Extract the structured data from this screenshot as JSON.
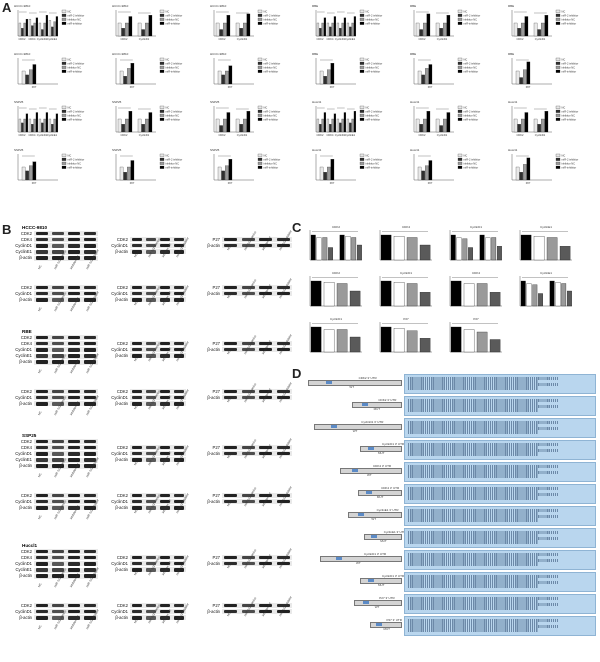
{
  "panel_letters": [
    "A",
    "B",
    "C",
    "D"
  ],
  "panel_a": {
    "legend_series": [
      "NC",
      "miR-2 inhibitor",
      "inhibitor NC",
      "miR-inhibitor"
    ],
    "series_colors": [
      "#e8e8e8",
      "#2f2f2f",
      "#9a9a9a",
      "#000000"
    ],
    "plots": [
      {
        "title": "HCCC-9810",
        "categories": [
          "CDK2",
          "CDK4",
          "CyclinD1",
          "CyclinE1"
        ],
        "values": [
          [
            1.0,
            1.3,
            1.0,
            1.2
          ],
          [
            0.6,
            0.8,
            0.5,
            0.7
          ],
          [
            1.0,
            1.0,
            1.0,
            1.1
          ],
          [
            1.3,
            1.4,
            1.6,
            1.5
          ]
        ]
      },
      {
        "title": "HCCC-9810",
        "categories": [
          "CDK2",
          "CyclinD1"
        ],
        "values": [
          [
            1.0,
            1.0
          ],
          [
            0.6,
            0.5
          ],
          [
            1.0,
            1.0
          ],
          [
            1.5,
            1.6
          ]
        ]
      },
      {
        "title": "HCCC-9810",
        "categories": [
          "CDK2",
          "CyclinD1"
        ],
        "values": [
          [
            1.0,
            1.0
          ],
          [
            0.5,
            0.6
          ],
          [
            1.0,
            1.0
          ],
          [
            1.6,
            1.7
          ]
        ]
      },
      {
        "title": "RBE",
        "categories": [
          "CDK2",
          "CDK4",
          "CyclinD1",
          "CyclinE1"
        ],
        "values": [
          [
            1.0,
            1.0,
            1.0,
            1.0
          ],
          [
            0.6,
            0.7,
            0.6,
            0.7
          ],
          [
            1.0,
            1.0,
            1.0,
            1.0
          ],
          [
            1.4,
            1.5,
            1.4,
            1.5
          ]
        ]
      },
      {
        "title": "RBE",
        "categories": [
          "CDK2",
          "CyclinD1"
        ],
        "values": [
          [
            1.0,
            1.0
          ],
          [
            0.5,
            0.6
          ],
          [
            1.0,
            1.0
          ],
          [
            1.7,
            1.6
          ]
        ]
      },
      {
        "title": "RBE",
        "categories": [
          "CDK2",
          "CyclinD1"
        ],
        "values": [
          [
            1.0,
            1.0
          ],
          [
            0.6,
            0.5
          ],
          [
            1.0,
            1.0
          ],
          [
            1.5,
            1.6
          ]
        ]
      },
      {
        "title": "HCCC-9810",
        "categories": [
          "P27"
        ],
        "values": [
          [
            1.0
          ],
          [
            0.7
          ],
          [
            1.1
          ],
          [
            1.5
          ]
        ]
      },
      {
        "title": "HCCC-9810",
        "categories": [
          "P27"
        ],
        "values": [
          [
            1.0
          ],
          [
            0.6
          ],
          [
            1.2
          ],
          [
            1.6
          ]
        ]
      },
      {
        "title": "HCCC-9810",
        "categories": [
          "P27"
        ],
        "values": [
          [
            1.0
          ],
          [
            0.7
          ],
          [
            1.0
          ],
          [
            1.4
          ]
        ]
      },
      {
        "title": "RBE",
        "categories": [
          "P27"
        ],
        "values": [
          [
            1.0
          ],
          [
            0.6
          ],
          [
            1.1
          ],
          [
            1.6
          ]
        ]
      },
      {
        "title": "RBE",
        "categories": [
          "P27"
        ],
        "values": [
          [
            1.0
          ],
          [
            0.7
          ],
          [
            1.2
          ],
          [
            1.5
          ]
        ]
      },
      {
        "title": "RBE",
        "categories": [
          "P27"
        ],
        "values": [
          [
            1.0
          ],
          [
            0.5
          ],
          [
            1.1
          ],
          [
            1.7
          ]
        ]
      },
      {
        "title": "SSP25",
        "categories": [
          "CDK2",
          "CDK4",
          "CyclinD1",
          "CyclinE1"
        ],
        "values": [
          [
            1.0,
            1.0,
            1.0,
            1.0
          ],
          [
            0.7,
            0.6,
            0.7,
            0.6
          ],
          [
            1.0,
            1.0,
            1.0,
            1.0
          ],
          [
            1.4,
            1.5,
            1.5,
            1.4
          ]
        ]
      },
      {
        "title": "SSP25",
        "categories": [
          "CDK2",
          "CyclinD1"
        ],
        "values": [
          [
            1.0,
            1.0
          ],
          [
            0.6,
            0.6
          ],
          [
            1.0,
            1.0
          ],
          [
            1.6,
            1.5
          ]
        ]
      },
      {
        "title": "SSP25",
        "categories": [
          "CDK2",
          "CyclinD1"
        ],
        "values": [
          [
            1.0,
            1.0
          ],
          [
            0.5,
            0.6
          ],
          [
            1.0,
            1.0
          ],
          [
            1.5,
            1.6
          ]
        ]
      },
      {
        "title": "Hucct1",
        "categories": [
          "CDK2",
          "CDK4",
          "CyclinD1",
          "CyclinE1"
        ],
        "values": [
          [
            1.0,
            1.0,
            1.0,
            1.0
          ],
          [
            0.6,
            0.6,
            0.7,
            0.7
          ],
          [
            1.0,
            1.0,
            1.0,
            1.0
          ],
          [
            1.5,
            1.4,
            1.5,
            1.6
          ]
        ]
      },
      {
        "title": "Hucct1",
        "categories": [
          "CDK2",
          "CyclinD1"
        ],
        "values": [
          [
            1.0,
            1.0
          ],
          [
            0.6,
            0.5
          ],
          [
            1.0,
            1.0
          ],
          [
            1.6,
            1.5
          ]
        ]
      },
      {
        "title": "Hucct1",
        "categories": [
          "CDK2",
          "CyclinD1"
        ],
        "values": [
          [
            1.0,
            1.0
          ],
          [
            0.6,
            0.6
          ],
          [
            1.0,
            1.0
          ],
          [
            1.5,
            1.6
          ]
        ]
      },
      {
        "title": "SSP25",
        "categories": [
          "P27"
        ],
        "values": [
          [
            1.0
          ],
          [
            0.7
          ],
          [
            1.1
          ],
          [
            1.4
          ]
        ]
      },
      {
        "title": "SSP25",
        "categories": [
          "P27"
        ],
        "values": [
          [
            1.0
          ],
          [
            0.6
          ],
          [
            1.0
          ],
          [
            1.5
          ]
        ]
      },
      {
        "title": "SSP25",
        "categories": [
          "P27"
        ],
        "values": [
          [
            1.0
          ],
          [
            0.7
          ],
          [
            1.1
          ],
          [
            1.6
          ]
        ]
      },
      {
        "title": "Hucct1",
        "categories": [
          "P27"
        ],
        "values": [
          [
            1.0
          ],
          [
            0.6
          ],
          [
            1.0
          ],
          [
            1.6
          ]
        ]
      },
      {
        "title": "Hucct1",
        "categories": [
          "P27"
        ],
        "values": [
          [
            1.0
          ],
          [
            0.7
          ],
          [
            1.1
          ],
          [
            1.5
          ]
        ]
      },
      {
        "title": "Hucct1",
        "categories": [
          "P27"
        ],
        "values": [
          [
            1.0
          ],
          [
            0.6
          ],
          [
            1.2
          ],
          [
            1.7
          ]
        ]
      }
    ]
  },
  "panel_b": {
    "cell_lines": [
      "HCCC-9810",
      "RBE",
      "SSP25",
      "Huccl1"
    ],
    "left_labels": [
      "CDK2",
      "CDK4",
      "CyclinD1",
      "CyclinE1",
      "β-actin"
    ],
    "left_small_labels": [
      "CDK2",
      "CyclinD1",
      "β-actin"
    ],
    "mid_labels": [
      "CDK2",
      "CyclinD1",
      "β-actin"
    ],
    "right_labels": [
      "P27",
      "β-actin"
    ],
    "lane_labels": [
      "NC",
      "miR-122 mimics",
      "inhibitor NC",
      "miR-122 inhibitor"
    ]
  },
  "panel_c": {
    "plots": [
      {
        "title": "CDK2",
        "values": [
          1.0,
          0.9,
          0.9,
          0.5,
          1.0,
          0.95,
          0.9,
          0.6
        ]
      },
      {
        "title": "CDK4",
        "values": [
          1.0,
          0.95,
          0.9,
          0.6
        ]
      },
      {
        "title": "CyclinD1",
        "values": [
          1.0,
          0.9,
          0.85,
          0.5,
          1.0,
          0.9,
          0.9,
          0.55
        ]
      },
      {
        "title": "CyclinE1",
        "values": [
          1.0,
          0.95,
          0.9,
          0.55
        ]
      },
      {
        "title": "CDK2",
        "values": [
          1.0,
          0.95,
          0.9,
          0.6
        ]
      },
      {
        "title": "CyclinD1",
        "values": [
          1.0,
          0.95,
          0.9,
          0.55
        ]
      },
      {
        "title": "CDK4",
        "values": [
          1.0,
          0.9,
          0.9,
          0.55
        ]
      },
      {
        "title": "CyclinE1",
        "values": [
          1.0,
          0.9,
          0.85,
          0.5,
          1.0,
          0.95,
          0.9,
          0.6
        ]
      },
      {
        "title": "CyclinD1",
        "values": [
          1.0,
          0.9,
          0.9,
          0.6
        ]
      },
      {
        "title": "P27",
        "values": [
          1.0,
          0.95,
          0.85,
          0.55
        ]
      },
      {
        "title": "P27",
        "values": [
          1.0,
          0.9,
          0.8,
          0.5
        ]
      }
    ]
  },
  "panel_d": {
    "utr_titles": [
      "CDK2 3' UTR",
      "CDK2 3' UTR",
      "CyclinD1 3' UTR",
      "CyclinD1 3' UTR",
      "CDK4 3' UTR",
      "CDK4 3' UTR",
      "CyclinE1 3' UTR",
      "CyclinE1 3' UTR",
      "CyclinD1 3' UTR",
      "CyclinD1 3' UTR",
      "P27 3' UTR",
      "P27 3' UTR"
    ],
    "site_labels": [
      "WT",
      "MUT"
    ]
  }
}
